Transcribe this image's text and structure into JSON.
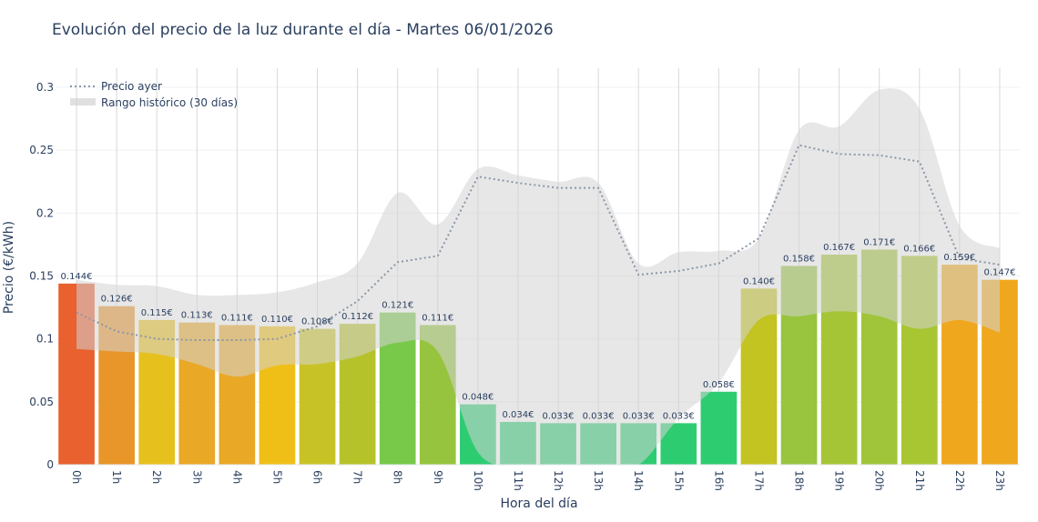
{
  "chart_data": {
    "type": "bar",
    "title": "Evolución del precio de la luz durante el día - Martes 06/01/2026",
    "xlabel": "Hora del día",
    "ylabel": "Precio (€/kWh)",
    "ylim": [
      0,
      0.315
    ],
    "yticks": [
      0,
      0.05,
      0.1,
      0.15,
      0.2,
      0.25,
      0.3
    ],
    "ytick_labels": [
      "0",
      "0.05",
      "0.1",
      "0.15",
      "0.2",
      "0.25",
      "0.3"
    ],
    "grid": true,
    "legend_position": "top-left",
    "categories": [
      "0h",
      "1h",
      "2h",
      "3h",
      "4h",
      "5h",
      "6h",
      "7h",
      "8h",
      "9h",
      "10h",
      "11h",
      "12h",
      "13h",
      "14h",
      "15h",
      "16h",
      "17h",
      "18h",
      "19h",
      "20h",
      "21h",
      "22h",
      "23h"
    ],
    "values": [
      0.144,
      0.126,
      0.115,
      0.113,
      0.111,
      0.11,
      0.108,
      0.112,
      0.121,
      0.111,
      0.048,
      0.034,
      0.033,
      0.033,
      0.033,
      0.033,
      0.058,
      0.14,
      0.158,
      0.167,
      0.171,
      0.166,
      0.159,
      0.147
    ],
    "data_labels": [
      "0.144€",
      "0.126€",
      "0.115€",
      "0.113€",
      "0.111€",
      "0.110€",
      "0.108€",
      "0.112€",
      "0.121€",
      "0.111€",
      "0.048€",
      "0.034€",
      "0.033€",
      "0.033€",
      "0.033€",
      "0.033€",
      "0.058€",
      "0.140€",
      "0.158€",
      "0.167€",
      "0.171€",
      "0.166€",
      "0.159€",
      "0.147€"
    ],
    "bar_colors": [
      "#e8612f",
      "#e8962a",
      "#e6c11e",
      "#e9a826",
      "#e9a826",
      "#efbf18",
      "#c7c326",
      "#b6c22a",
      "#78c84a",
      "#96c43e",
      "#2ecc71",
      "#2ecc71",
      "#2ecc71",
      "#2ecc71",
      "#2ecc71",
      "#2ecc71",
      "#2ecc71",
      "#c3c322",
      "#98c43e",
      "#a6c536",
      "#a0c43a",
      "#a8c532",
      "#efa81e",
      "#efa81e"
    ],
    "series": [
      {
        "name": "Precio ayer",
        "type": "line",
        "style": "dotted",
        "color": "#8a97a8",
        "values": [
          0.121,
          0.106,
          0.1,
          0.099,
          0.099,
          0.1,
          0.11,
          0.13,
          0.161,
          0.166,
          0.229,
          0.224,
          0.22,
          0.22,
          0.151,
          0.154,
          0.16,
          0.18,
          0.254,
          0.247,
          0.246,
          0.241,
          0.164,
          0.159
        ]
      },
      {
        "name": "Rango histórico (30 días)",
        "type": "band",
        "color": "#d3d3d3",
        "upper": [
          0.147,
          0.143,
          0.142,
          0.135,
          0.135,
          0.137,
          0.145,
          0.16,
          0.216,
          0.191,
          0.235,
          0.23,
          0.225,
          0.224,
          0.16,
          0.169,
          0.17,
          0.18,
          0.266,
          0.269,
          0.298,
          0.283,
          0.19,
          0.172
        ],
        "lower": [
          0.092,
          0.09,
          0.088,
          0.08,
          0.07,
          0.079,
          0.08,
          0.086,
          0.097,
          0.09,
          0.01,
          0.0,
          0.0,
          0.0,
          0.0,
          0.037,
          0.065,
          0.115,
          0.118,
          0.122,
          0.118,
          0.108,
          0.115,
          0.105
        ]
      }
    ]
  }
}
